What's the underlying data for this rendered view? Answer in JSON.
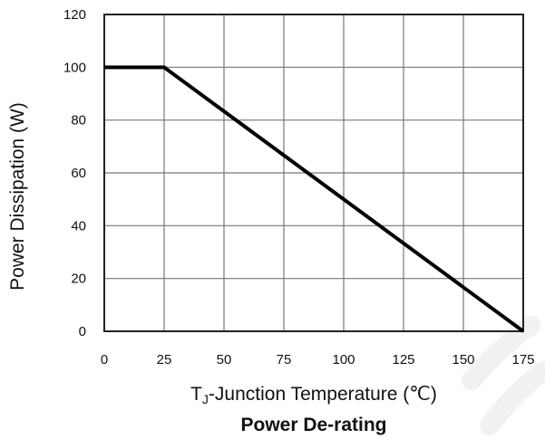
{
  "chart_data": {
    "type": "line",
    "title": "Power De-rating",
    "xlabel": "TJ-Junction Temperature (℃)",
    "ylabel": "Power Dissipation (W)",
    "xlim": [
      0,
      175
    ],
    "ylim": [
      0,
      120
    ],
    "xticks": [
      0,
      25,
      50,
      75,
      100,
      125,
      150,
      175
    ],
    "yticks": [
      0,
      20,
      40,
      60,
      80,
      100,
      120
    ],
    "grid": true,
    "series": [
      {
        "x": [
          0,
          25,
          175
        ],
        "y": [
          100,
          100,
          0
        ],
        "color": "#000000"
      }
    ]
  }
}
